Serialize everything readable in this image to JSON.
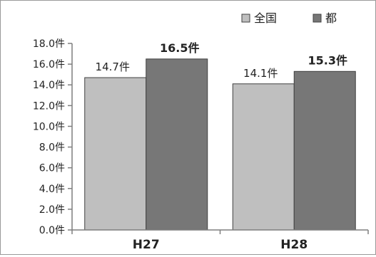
{
  "chart_data": {
    "type": "bar",
    "title": "",
    "xlabel": "",
    "ylabel": "",
    "categories": [
      "H27",
      "H28"
    ],
    "series": [
      {
        "name": "全国",
        "color": "#bfbfbf",
        "values": [
          14.7,
          14.1
        ],
        "labels": [
          "14.7件",
          "14.1件"
        ],
        "label_bold": false
      },
      {
        "name": "都",
        "color": "#777777",
        "values": [
          16.5,
          15.3
        ],
        "labels": [
          "16.5件",
          "15.3件"
        ],
        "label_bold": true
      }
    ],
    "ylim": [
      0,
      18
    ],
    "yticks": [
      0,
      2,
      4,
      6,
      8,
      10,
      12,
      14,
      16,
      18
    ],
    "ytick_labels": [
      "0.0件",
      "2.0件",
      "4.0件",
      "6.0件",
      "8.0件",
      "10.0件",
      "12.0件",
      "14.0件",
      "16.0件",
      "18.0件"
    ],
    "grid": false,
    "legend": "top-right"
  }
}
